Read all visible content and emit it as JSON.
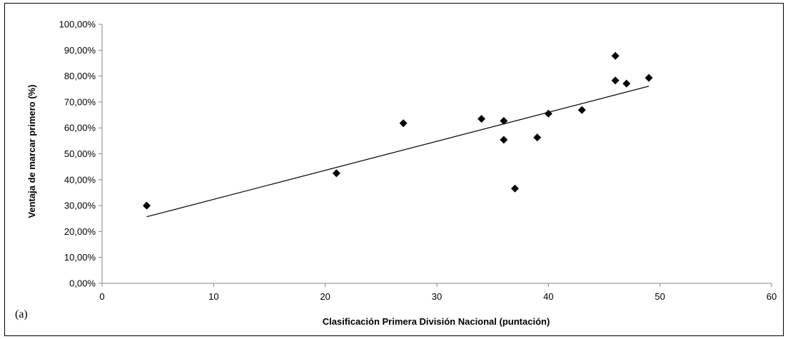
{
  "chart_data": {
    "type": "scatter",
    "xlabel": "Clasificación Primera División Nacional (puntación)",
    "ylabel": "Ventaja de marcar primero (%)",
    "panel_label": "(a)",
    "xlim": [
      0,
      60
    ],
    "ylim": [
      0,
      100
    ],
    "x_ticks": [
      0,
      10,
      20,
      30,
      40,
      50,
      60
    ],
    "x_tick_labels": [
      "0",
      "10",
      "20",
      "30",
      "40",
      "50",
      "60"
    ],
    "y_ticks": [
      0,
      10,
      20,
      30,
      40,
      50,
      60,
      70,
      80,
      90,
      100
    ],
    "y_tick_labels": [
      "0,00%",
      "10,00%",
      "20,00%",
      "30,00%",
      "40,00%",
      "50,00%",
      "60,00%",
      "70,00%",
      "80,00%",
      "90,00%",
      "100,00%"
    ],
    "grid": false,
    "marker": "diamond",
    "marker_color": "#000000",
    "points": [
      {
        "x": 4,
        "y": 30
      },
      {
        "x": 21,
        "y": 42.5
      },
      {
        "x": 27,
        "y": 61.8
      },
      {
        "x": 34,
        "y": 63.5
      },
      {
        "x": 36,
        "y": 62.7
      },
      {
        "x": 36,
        "y": 55.4
      },
      {
        "x": 37,
        "y": 36.6
      },
      {
        "x": 39,
        "y": 56.3
      },
      {
        "x": 40,
        "y": 65.5
      },
      {
        "x": 43,
        "y": 66.9
      },
      {
        "x": 46,
        "y": 87.8
      },
      {
        "x": 46,
        "y": 78.3
      },
      {
        "x": 47,
        "y": 77.1
      },
      {
        "x": 49,
        "y": 79.3
      }
    ],
    "trendline": {
      "type": "linear",
      "x_start": 4,
      "y_start": 25.7,
      "x_end": 49,
      "y_end": 76.1
    }
  }
}
